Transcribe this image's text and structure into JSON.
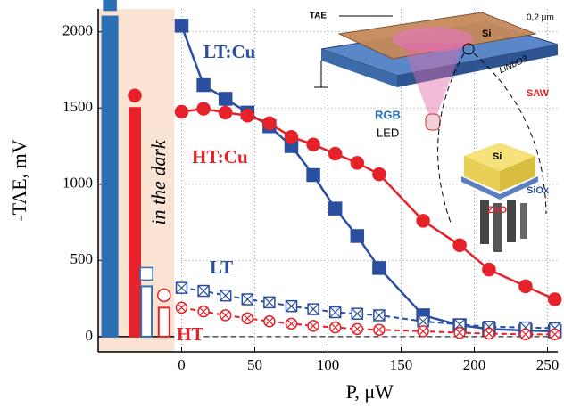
{
  "chart_data": {
    "type": "line",
    "xlabel": "P, μW",
    "ylabel": "-TAE, mV",
    "xlim": [
      -57,
      257
    ],
    "ylim": [
      -100,
      2150
    ],
    "xticks": [
      0,
      50,
      100,
      150,
      200,
      250
    ],
    "yticks": [
      0,
      500,
      1000,
      1500,
      2000
    ],
    "grid": true,
    "x": [
      0,
      15,
      30,
      45,
      60,
      75,
      90,
      105,
      120,
      135,
      165,
      190,
      210,
      235,
      255
    ],
    "series": [
      {
        "name": "LT:Cu",
        "color": "#2b4fa0",
        "marker": "square",
        "filled": true,
        "dashed": false,
        "values": [
          2040,
          1650,
          1560,
          1470,
          1380,
          1250,
          1060,
          840,
          660,
          450,
          140,
          75,
          50,
          40,
          35
        ]
      },
      {
        "name": "HT:Cu",
        "color": "#e52229",
        "marker": "circle",
        "filled": true,
        "dashed": false,
        "values": [
          1475,
          1495,
          1470,
          1450,
          1400,
          1310,
          1260,
          1200,
          1140,
          1065,
          760,
          600,
          440,
          330,
          245
        ]
      },
      {
        "name": "LT",
        "color": "#2b4fa0",
        "marker": "square",
        "filled": false,
        "dashed": true,
        "values": [
          320,
          300,
          270,
          245,
          225,
          200,
          180,
          160,
          150,
          140,
          100,
          80,
          65,
          60,
          55
        ]
      },
      {
        "name": "HT",
        "color": "#e52229",
        "marker": "circle",
        "filled": false,
        "dashed": true,
        "values": [
          190,
          165,
          140,
          120,
          100,
          85,
          70,
          60,
          50,
          45,
          35,
          25,
          20,
          15,
          15
        ]
      }
    ],
    "dark": {
      "label": "in the dark",
      "region": [
        -57,
        -5
      ],
      "region_color": "#fbe3d4",
      "x": [
        -49,
        -32,
        -24,
        -12
      ],
      "values": [
        2100,
        1500,
        330,
        190
      ],
      "colors": [
        "#2b6fb5",
        "#e52229",
        "#2b6fb5",
        "#e52229"
      ],
      "markers": [
        "square",
        "circle",
        "square",
        "circle"
      ],
      "filled": [
        true,
        true,
        false,
        false
      ]
    },
    "inset_labels": [
      "TAE",
      "Si",
      "0,2 μm",
      "LiNbO3",
      "SAW",
      "RGB",
      "LED",
      "Si",
      "SiOx",
      "ZnO"
    ]
  }
}
